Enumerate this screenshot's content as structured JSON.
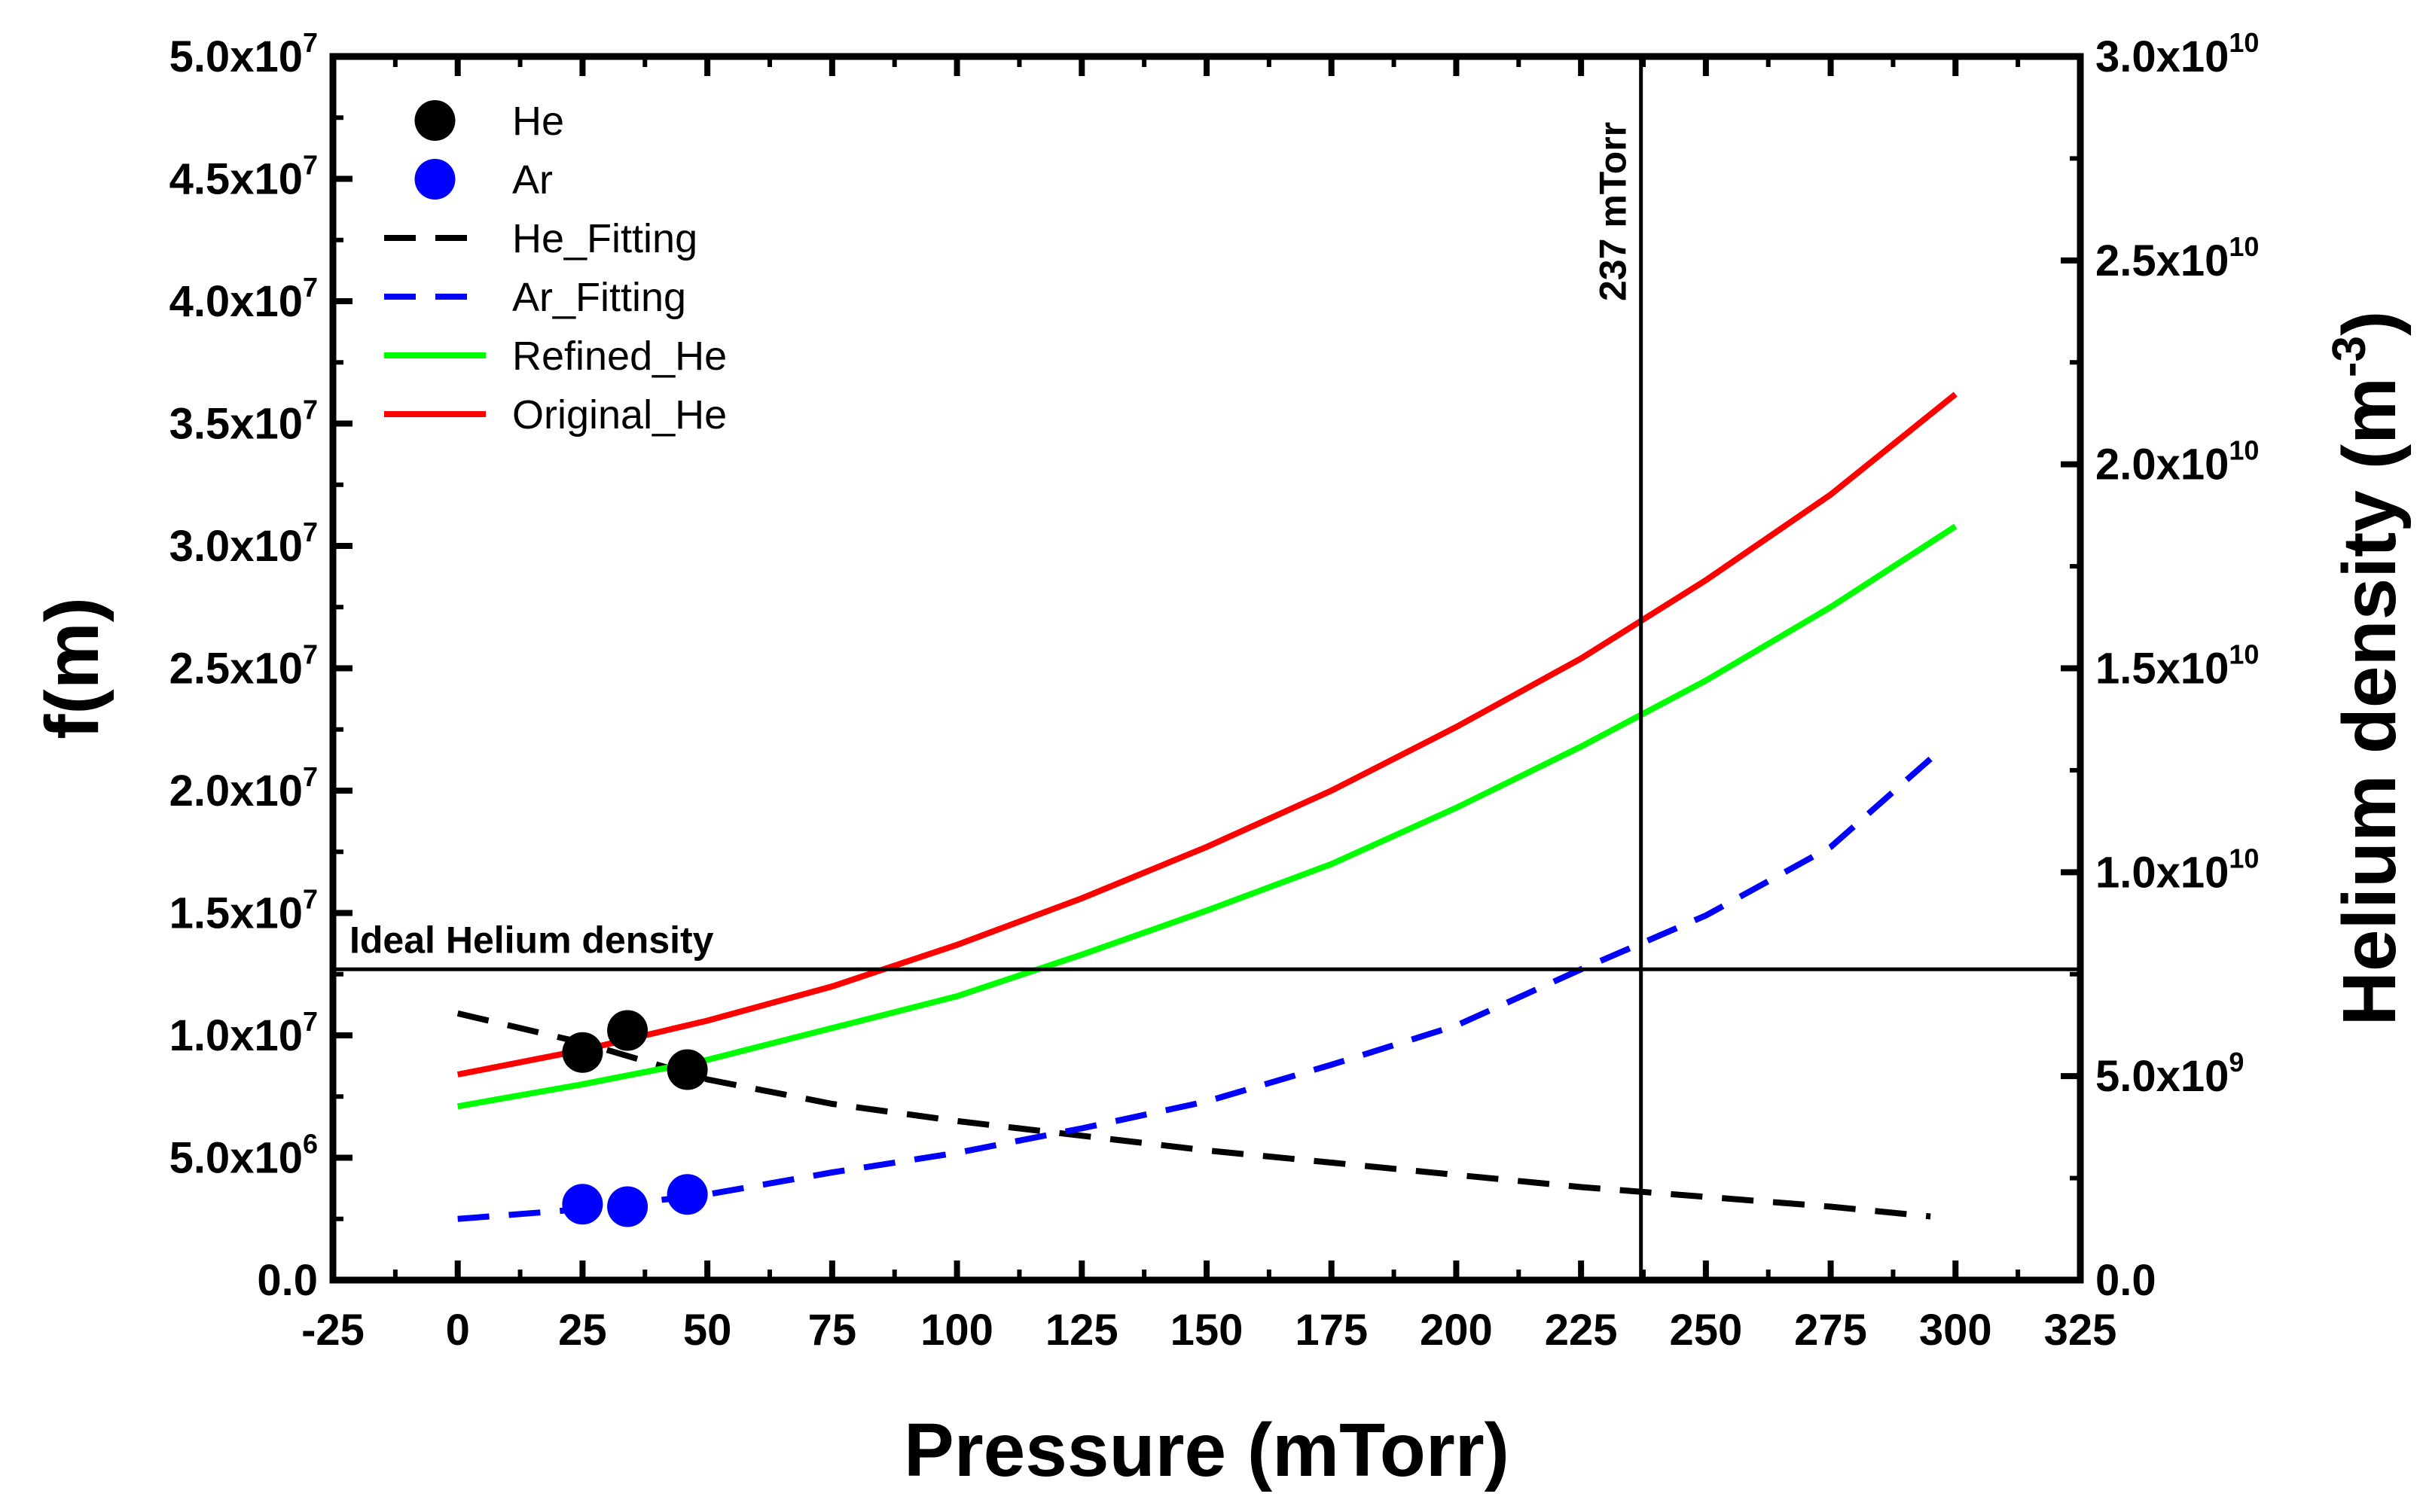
{
  "chart_data": {
    "type": "line",
    "xlabel": "Pressure (mTorr)",
    "ylabel": "f(m)",
    "y2label": "Helium density (m",
    "y2label_sup": "-3",
    "xlim": [
      -25,
      325
    ],
    "ylim": [
      0,
      50000000
    ],
    "y2lim": [
      0,
      30000000000
    ],
    "x_ticks": [
      "-25",
      "0",
      "25",
      "50",
      "75",
      "100",
      "125",
      "150",
      "175",
      "200",
      "225",
      "250",
      "275",
      "300",
      "325"
    ],
    "y_ticks": [
      {
        "mantissa": "0.0",
        "exp": ""
      },
      {
        "mantissa": "5.0x10",
        "exp": "6"
      },
      {
        "mantissa": "1.0x10",
        "exp": "7"
      },
      {
        "mantissa": "1.5x10",
        "exp": "7"
      },
      {
        "mantissa": "2.0x10",
        "exp": "7"
      },
      {
        "mantissa": "2.5x10",
        "exp": "7"
      },
      {
        "mantissa": "3.0x10",
        "exp": "7"
      },
      {
        "mantissa": "3.5x10",
        "exp": "7"
      },
      {
        "mantissa": "4.0x10",
        "exp": "7"
      },
      {
        "mantissa": "4.5x10",
        "exp": "7"
      },
      {
        "mantissa": "5.0x10",
        "exp": "7"
      }
    ],
    "y2_ticks": [
      {
        "mantissa": "0.0",
        "exp": ""
      },
      {
        "mantissa": "5.0x10",
        "exp": "9"
      },
      {
        "mantissa": "1.0x10",
        "exp": "10"
      },
      {
        "mantissa": "1.5x10",
        "exp": "10"
      },
      {
        "mantissa": "2.0x10",
        "exp": "10"
      },
      {
        "mantissa": "2.5x10",
        "exp": "10"
      },
      {
        "mantissa": "3.0x10",
        "exp": "10"
      }
    ],
    "series": [
      {
        "name": "He",
        "kind": "scatter",
        "color": "#000000",
        "x": [
          25,
          34,
          46
        ],
        "y": [
          9300000,
          10200000,
          8600000
        ]
      },
      {
        "name": "Ar",
        "kind": "scatter",
        "color": "#0000ff",
        "x": [
          25,
          34,
          46
        ],
        "y": [
          3100000,
          3000000,
          3500000
        ]
      },
      {
        "name": "He_Fitting",
        "kind": "line",
        "style": "dashed",
        "color": "#000000",
        "x": [
          0,
          25,
          50,
          75,
          100,
          125,
          150,
          175,
          200,
          225,
          250,
          275,
          295
        ],
        "y": [
          10900000,
          9700000,
          8200000,
          7200000,
          6500000,
          5900000,
          5300000,
          4800000,
          4300000,
          3800000,
          3400000,
          3000000,
          2600000
        ]
      },
      {
        "name": "Ar_Fitting",
        "kind": "line",
        "style": "dashed",
        "color": "#0000ff",
        "x": [
          0,
          25,
          50,
          75,
          100,
          125,
          150,
          175,
          200,
          225,
          250,
          275,
          295
        ],
        "y": [
          2500000,
          2900000,
          3500000,
          4400000,
          5200000,
          6200000,
          7300000,
          8800000,
          10400000,
          12700000,
          14900000,
          17700000,
          21300000
        ]
      },
      {
        "name": "Refined_He",
        "kind": "line",
        "style": "solid",
        "color": "#00ff00",
        "x": [
          0,
          25,
          50,
          75,
          100,
          125,
          150,
          175,
          200,
          225,
          250,
          275,
          300
        ],
        "y": [
          7100000,
          8000000,
          9000000,
          10300000,
          11600000,
          13300000,
          15100000,
          17000000,
          19300000,
          21800000,
          24500000,
          27500000,
          30800000
        ]
      },
      {
        "name": "Original_He",
        "kind": "line",
        "style": "solid",
        "color": "#ff0000",
        "x": [
          0,
          25,
          50,
          75,
          100,
          125,
          150,
          175,
          200,
          225,
          250,
          275,
          300
        ],
        "y": [
          8400000,
          9400000,
          10600000,
          12000000,
          13700000,
          15600000,
          17700000,
          20000000,
          22600000,
          25400000,
          28600000,
          32100000,
          36200000
        ]
      }
    ],
    "annotations": {
      "vline": {
        "x": 237,
        "label": "237 mTorr"
      },
      "hline": {
        "y": 12700000,
        "label": "Ideal Helium density"
      }
    },
    "legend": "top-left",
    "grid": false
  }
}
